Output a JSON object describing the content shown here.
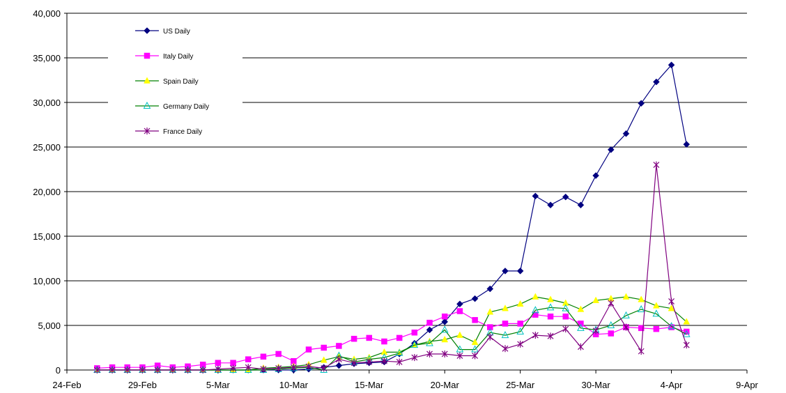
{
  "chart_data": {
    "type": "line",
    "x_axis": {
      "ticks": [
        "24-Feb",
        "29-Feb",
        "5-Mar",
        "10-Mar",
        "15-Mar",
        "20-Mar",
        "25-Mar",
        "30-Mar",
        "4-Apr",
        "9-Apr"
      ],
      "range_days": [
        0,
        45
      ]
    },
    "y_axis": {
      "ticks": [
        "0",
        "5,000",
        "10,000",
        "15,000",
        "20,000",
        "25,000",
        "30,000",
        "35,000",
        "40,000"
      ],
      "ylim": [
        0,
        40000
      ]
    },
    "grid": "horizontal major gridlines",
    "legend_position": "top-left",
    "x_start_date": "2020-02-24",
    "x_dates": [
      "26-Feb",
      "27-Feb",
      "28-Feb",
      "29-Feb",
      "1-Mar",
      "2-Mar",
      "3-Mar",
      "4-Mar",
      "5-Mar",
      "6-Mar",
      "7-Mar",
      "8-Mar",
      "9-Mar",
      "10-Mar",
      "11-Mar",
      "12-Mar",
      "13-Mar",
      "14-Mar",
      "15-Mar",
      "16-Mar",
      "17-Mar",
      "18-Mar",
      "19-Mar",
      "20-Mar",
      "21-Mar",
      "22-Mar",
      "23-Mar",
      "24-Mar",
      "25-Mar",
      "26-Mar",
      "27-Mar",
      "28-Mar",
      "29-Mar",
      "30-Mar",
      "31-Mar",
      "1-Apr",
      "2-Apr",
      "3-Apr",
      "4-Apr",
      "5-Apr"
    ],
    "series": [
      {
        "name": "US Daily",
        "color": "#000080",
        "marker": "diamond",
        "values": [
          0,
          0,
          0,
          0,
          0,
          0,
          0,
          0,
          0,
          0,
          0,
          0,
          0,
          0,
          100,
          300,
          500,
          700,
          800,
          900,
          1800,
          3000,
          4500,
          5400,
          7400,
          8000,
          9100,
          11100,
          11100,
          19500,
          18500,
          19400,
          18500,
          21800,
          24700,
          26500,
          29900,
          32300,
          34200,
          25300
        ]
      },
      {
        "name": "Italy Daily",
        "color": "#ff00ff",
        "marker": "square",
        "values": [
          200,
          300,
          300,
          300,
          500,
          300,
          400,
          600,
          800,
          800,
          1200,
          1500,
          1800,
          1000,
          2300,
          2500,
          2700,
          3500,
          3600,
          3200,
          3600,
          4200,
          5300,
          6000,
          6600,
          5600,
          4800,
          5200,
          5200,
          6200,
          6000,
          6000,
          5200,
          4000,
          4100,
          4800,
          4700,
          4600,
          4800,
          4300
        ]
      },
      {
        "name": "Spain Daily",
        "color": "#ffff00",
        "marker": "triangle",
        "line_color": "#008000",
        "values": [
          0,
          0,
          0,
          0,
          0,
          0,
          0,
          0,
          0,
          0,
          0,
          200,
          300,
          400,
          600,
          1100,
          1500,
          1200,
          1400,
          2000,
          2000,
          2800,
          3200,
          3400,
          3900,
          3100,
          6500,
          6900,
          7400,
          8200,
          7900,
          7500,
          6800,
          7800,
          8000,
          8200,
          7900,
          7200,
          6900,
          5400
        ]
      },
      {
        "name": "Germany Daily",
        "color": "#00c0c0",
        "marker": "open-triangle",
        "line_color": "#008000",
        "values": [
          0,
          0,
          0,
          0,
          0,
          0,
          0,
          0,
          0,
          0,
          0,
          0,
          100,
          200,
          300,
          0,
          1600,
          900,
          1200,
          1400,
          1900,
          2800,
          3000,
          4500,
          2300,
          2300,
          4200,
          3900,
          4300,
          6700,
          7000,
          6900,
          4700,
          4500,
          5000,
          6100,
          6800,
          6300,
          4900,
          4000
        ]
      },
      {
        "name": "France Daily",
        "color": "#800080",
        "marker": "star",
        "values": [
          0,
          0,
          0,
          0,
          0,
          0,
          0,
          0,
          100,
          200,
          300,
          100,
          200,
          300,
          400,
          200,
          1200,
          800,
          900,
          1000,
          900,
          1400,
          1800,
          1800,
          1600,
          1600,
          3700,
          2400,
          2900,
          3900,
          3800,
          4600,
          2600,
          4400,
          7500,
          4800,
          2100,
          23000,
          7700,
          2800
        ]
      }
    ]
  }
}
